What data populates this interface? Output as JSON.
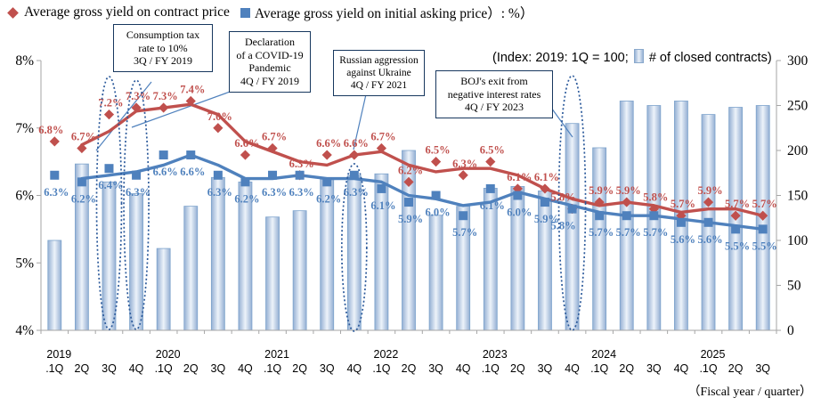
{
  "legend": {
    "series1_label": "Average gross yield on contract price",
    "series2_label": "Average gross yield on initial asking price）: %）"
  },
  "index_note": {
    "left": "(Index: 2019: 1Q = 100;",
    "right": "# of closed contracts)"
  },
  "footer": "（Fiscal year / quarter）",
  "annotations": [
    {
      "text": "Consumption tax\nrate to 10%\n3Q / FY 2019"
    },
    {
      "text": "Declaration\nof a COVID-19\nPandemic\n4Q / FY 2019"
    },
    {
      "text": "Russian aggression\nagainst Ukraine\n4Q / FY 2021"
    },
    {
      "text": "BOJ's exit from\nnegative interest rates\n4Q / FY 2023"
    }
  ],
  "chart_data": {
    "type": "combo-bar-line",
    "x_axis": {
      "years": [
        {
          "label": "2019",
          "quarters": [
            ".1Q",
            "2Q",
            "3Q",
            "4Q"
          ]
        },
        {
          "label": "2020",
          "quarters": [
            ".1Q",
            "2Q",
            "3Q",
            "4Q"
          ]
        },
        {
          "label": "2021",
          "quarters": [
            ".1Q",
            "2Q",
            "3Q",
            "4Q"
          ]
        },
        {
          "label": "2022",
          "quarters": [
            ".1Q",
            "2Q",
            "3Q",
            "4Q"
          ]
        },
        {
          "label": "2023",
          "quarters": [
            ".1Q",
            "2Q",
            "3Q",
            "4Q"
          ]
        },
        {
          "label": "2024",
          "quarters": [
            ".1Q",
            "2Q",
            "3Q",
            "4Q"
          ]
        },
        {
          "label": "2025",
          "quarters": [
            ".1Q",
            "2Q",
            "3Q"
          ]
        }
      ]
    },
    "left_axis": {
      "min": 4,
      "max": 8,
      "tick_labels": [
        "8%",
        "7%",
        "6%",
        "5%",
        "4%"
      ],
      "unit": "%"
    },
    "right_axis": {
      "min": 0,
      "max": 300,
      "tick_labels": [
        "300",
        "250",
        "200",
        "150",
        "100",
        "50",
        "0"
      ]
    },
    "series": [
      {
        "name": "Average gross yield on contract price",
        "type": "line",
        "marker": "diamond",
        "color": "#C0504D",
        "unit": "%",
        "values": [
          6.8,
          6.7,
          7.2,
          7.3,
          7.3,
          7.4,
          7.0,
          6.6,
          6.7,
          6.3,
          6.6,
          6.6,
          6.7,
          6.2,
          6.5,
          6.3,
          6.5,
          6.1,
          6.1,
          5.8,
          5.9,
          5.9,
          5.8,
          5.7,
          5.9,
          5.7,
          5.7
        ]
      },
      {
        "name": "Average gross yield on initial asking price",
        "type": "line",
        "marker": "square",
        "color": "#4F81BD",
        "unit": "%",
        "values": [
          6.3,
          6.2,
          6.4,
          6.3,
          6.6,
          6.6,
          6.3,
          6.2,
          6.3,
          6.3,
          6.2,
          6.3,
          6.1,
          5.9,
          6.0,
          5.7,
          6.1,
          6.0,
          5.9,
          5.8,
          5.7,
          5.7,
          5.7,
          5.6,
          5.6,
          5.5,
          5.5
        ]
      },
      {
        "name": "# of closed contracts (Index: 2019 1Q = 100)",
        "type": "bar",
        "color": "#B8CCE4",
        "values": [
          100,
          185,
          165,
          152,
          91,
          138,
          170,
          165,
          126,
          133,
          168,
          172,
          174,
          200,
          128,
          138,
          158,
          160,
          155,
          230,
          203,
          255,
          250,
          255,
          240,
          248,
          250
        ]
      }
    ],
    "trend_line_hint": "solid lines are 2-quarter moving averages of marker values",
    "highlight_ellipses_quarters": [
      "2019-3Q",
      "2019-4Q",
      "2021-4Q",
      "2023-4Q"
    ],
    "grid": false,
    "legend_position": "top-left"
  },
  "colors": {
    "contract_series": "#C0504D",
    "asking_series": "#4F81BD",
    "bar_border": "#7DA3CC",
    "annotation_border": "#17375E",
    "axis": "#A6A6A6",
    "ellipse": "#2C5A9B"
  }
}
